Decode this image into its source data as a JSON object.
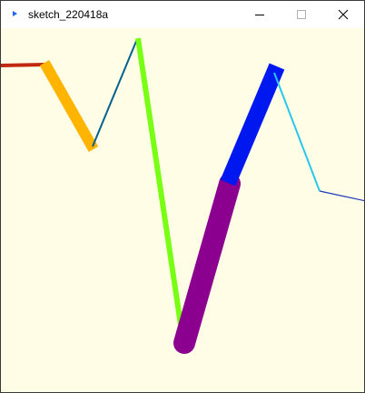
{
  "window": {
    "title": "sketch_220418a",
    "icon": "processing-app-icon",
    "controls": {
      "minimize_icon": "minimize-icon",
      "maximize_icon": "maximize-icon",
      "close_icon": "close-icon"
    }
  },
  "sketch": {
    "background": "#fffde6",
    "colors": {
      "red": "#c02810",
      "orange": "#ffb400",
      "teal": "#00608e",
      "green": "#78ff14",
      "purple": "#8c0090",
      "blue": "#0018f0",
      "cyan": "#28c8ee",
      "navy": "#1e38c0"
    }
  }
}
